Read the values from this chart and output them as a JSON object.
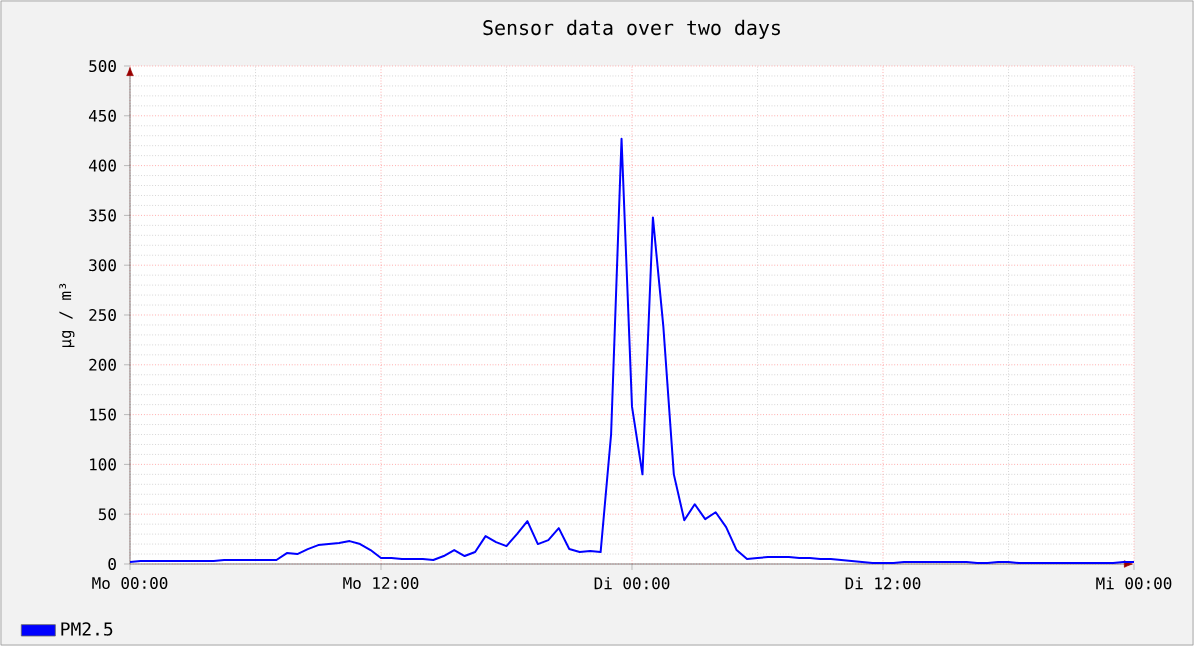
{
  "chart_data": {
    "type": "line",
    "title": "Sensor data over two days",
    "ylabel": "µg / m³",
    "categories": [
      "Mo 00:00",
      null,
      null,
      null,
      null,
      null,
      null,
      null,
      null,
      null,
      null,
      null,
      null,
      null,
      null,
      null,
      null,
      null,
      null,
      null,
      null,
      null,
      null,
      null,
      "Mo 12:00",
      null,
      null,
      null,
      null,
      null,
      null,
      null,
      null,
      null,
      null,
      null,
      null,
      null,
      null,
      null,
      null,
      null,
      null,
      null,
      null,
      null,
      null,
      null,
      "Di 00:00",
      null,
      null,
      null,
      null,
      null,
      null,
      null,
      null,
      null,
      null,
      null,
      null,
      null,
      null,
      null,
      null,
      null,
      null,
      null,
      null,
      null,
      null,
      null,
      "Di 12:00",
      null,
      null,
      null,
      null,
      null,
      null,
      null,
      null,
      null,
      null,
      null,
      null,
      null,
      null,
      null,
      null,
      null,
      null,
      null,
      null,
      null,
      null,
      null,
      "Mi 00:00"
    ],
    "ylim": [
      0,
      500
    ],
    "yticks": [
      0,
      50,
      100,
      150,
      200,
      250,
      300,
      350,
      400,
      450,
      500
    ],
    "grid": true,
    "legend": "bottom left",
    "series": [
      {
        "name": "PM2.5",
        "color": "#0000ff",
        "values": [
          2,
          3,
          3,
          3,
          3,
          3,
          3,
          3,
          3,
          4,
          4,
          4,
          4,
          4,
          4,
          11,
          10,
          15,
          19,
          20,
          21,
          23,
          20,
          14,
          6,
          6,
          5,
          5,
          5,
          4,
          8,
          14,
          8,
          12,
          28,
          22,
          18,
          30,
          43,
          20,
          24,
          36,
          15,
          12,
          13,
          12,
          130,
          427,
          158,
          90,
          348,
          238,
          90,
          44,
          60,
          45,
          52,
          37,
          14,
          5,
          6,
          7,
          7,
          7,
          6,
          6,
          5,
          5,
          4,
          3,
          2,
          1,
          1,
          1,
          2,
          2,
          2,
          2,
          2,
          2,
          2,
          1,
          1,
          2,
          2,
          1,
          1,
          1,
          1,
          1,
          1,
          1,
          1,
          1,
          1,
          2,
          2
        ]
      }
    ]
  }
}
